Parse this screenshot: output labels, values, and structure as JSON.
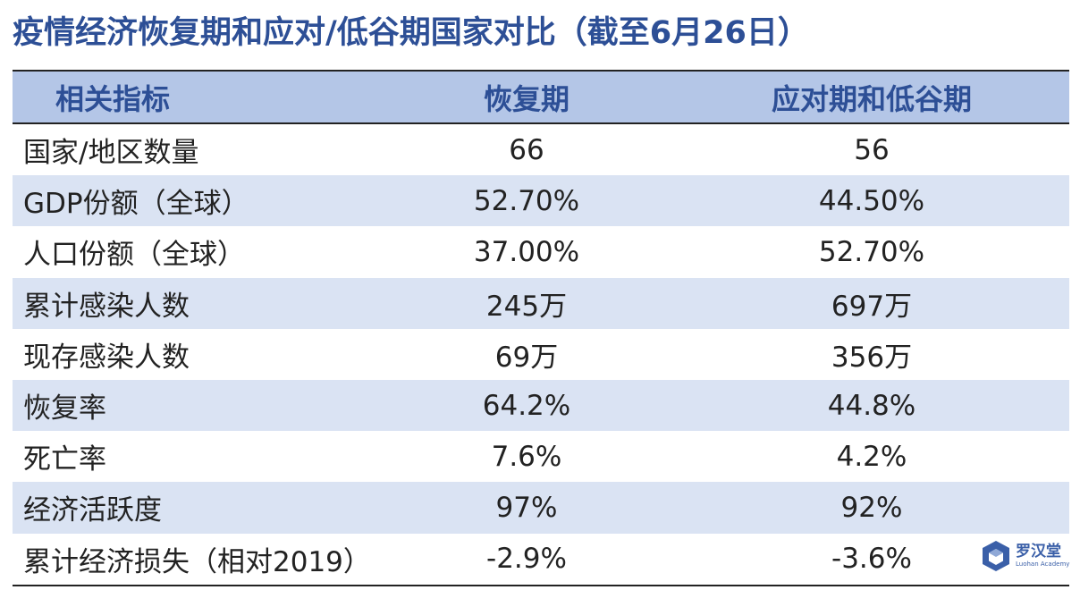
{
  "title": "疫情经济恢复期和应对/低谷期国家对比（截至6月26日）",
  "table": {
    "headers": [
      "相关指标",
      "恢复期",
      "应对期和低谷期"
    ],
    "rows": [
      [
        "国家/地区数量",
        "66",
        "56"
      ],
      [
        "GDP份额（全球）",
        "52.70%",
        "44.50%"
      ],
      [
        "人口份额（全球）",
        "37.00%",
        "52.70%"
      ],
      [
        "累计感染人数",
        "245万",
        "697万"
      ],
      [
        "现存感染人数",
        "69万",
        "356万"
      ],
      [
        "恢复率",
        "64.2%",
        "44.8%"
      ],
      [
        "死亡率",
        "7.6%",
        "4.2%"
      ],
      [
        "经济活跃度",
        "97%",
        "92%"
      ],
      [
        "累计经济损失（相对2019）",
        "-2.9%",
        "-3.6%"
      ]
    ]
  },
  "logo": {
    "name": "罗汉堂",
    "subtitle": "Luohan Academy"
  },
  "colors": {
    "title": "#2d4f96",
    "header_bg": "#b4c6e7",
    "stripe_bg": "#dae3f3"
  }
}
